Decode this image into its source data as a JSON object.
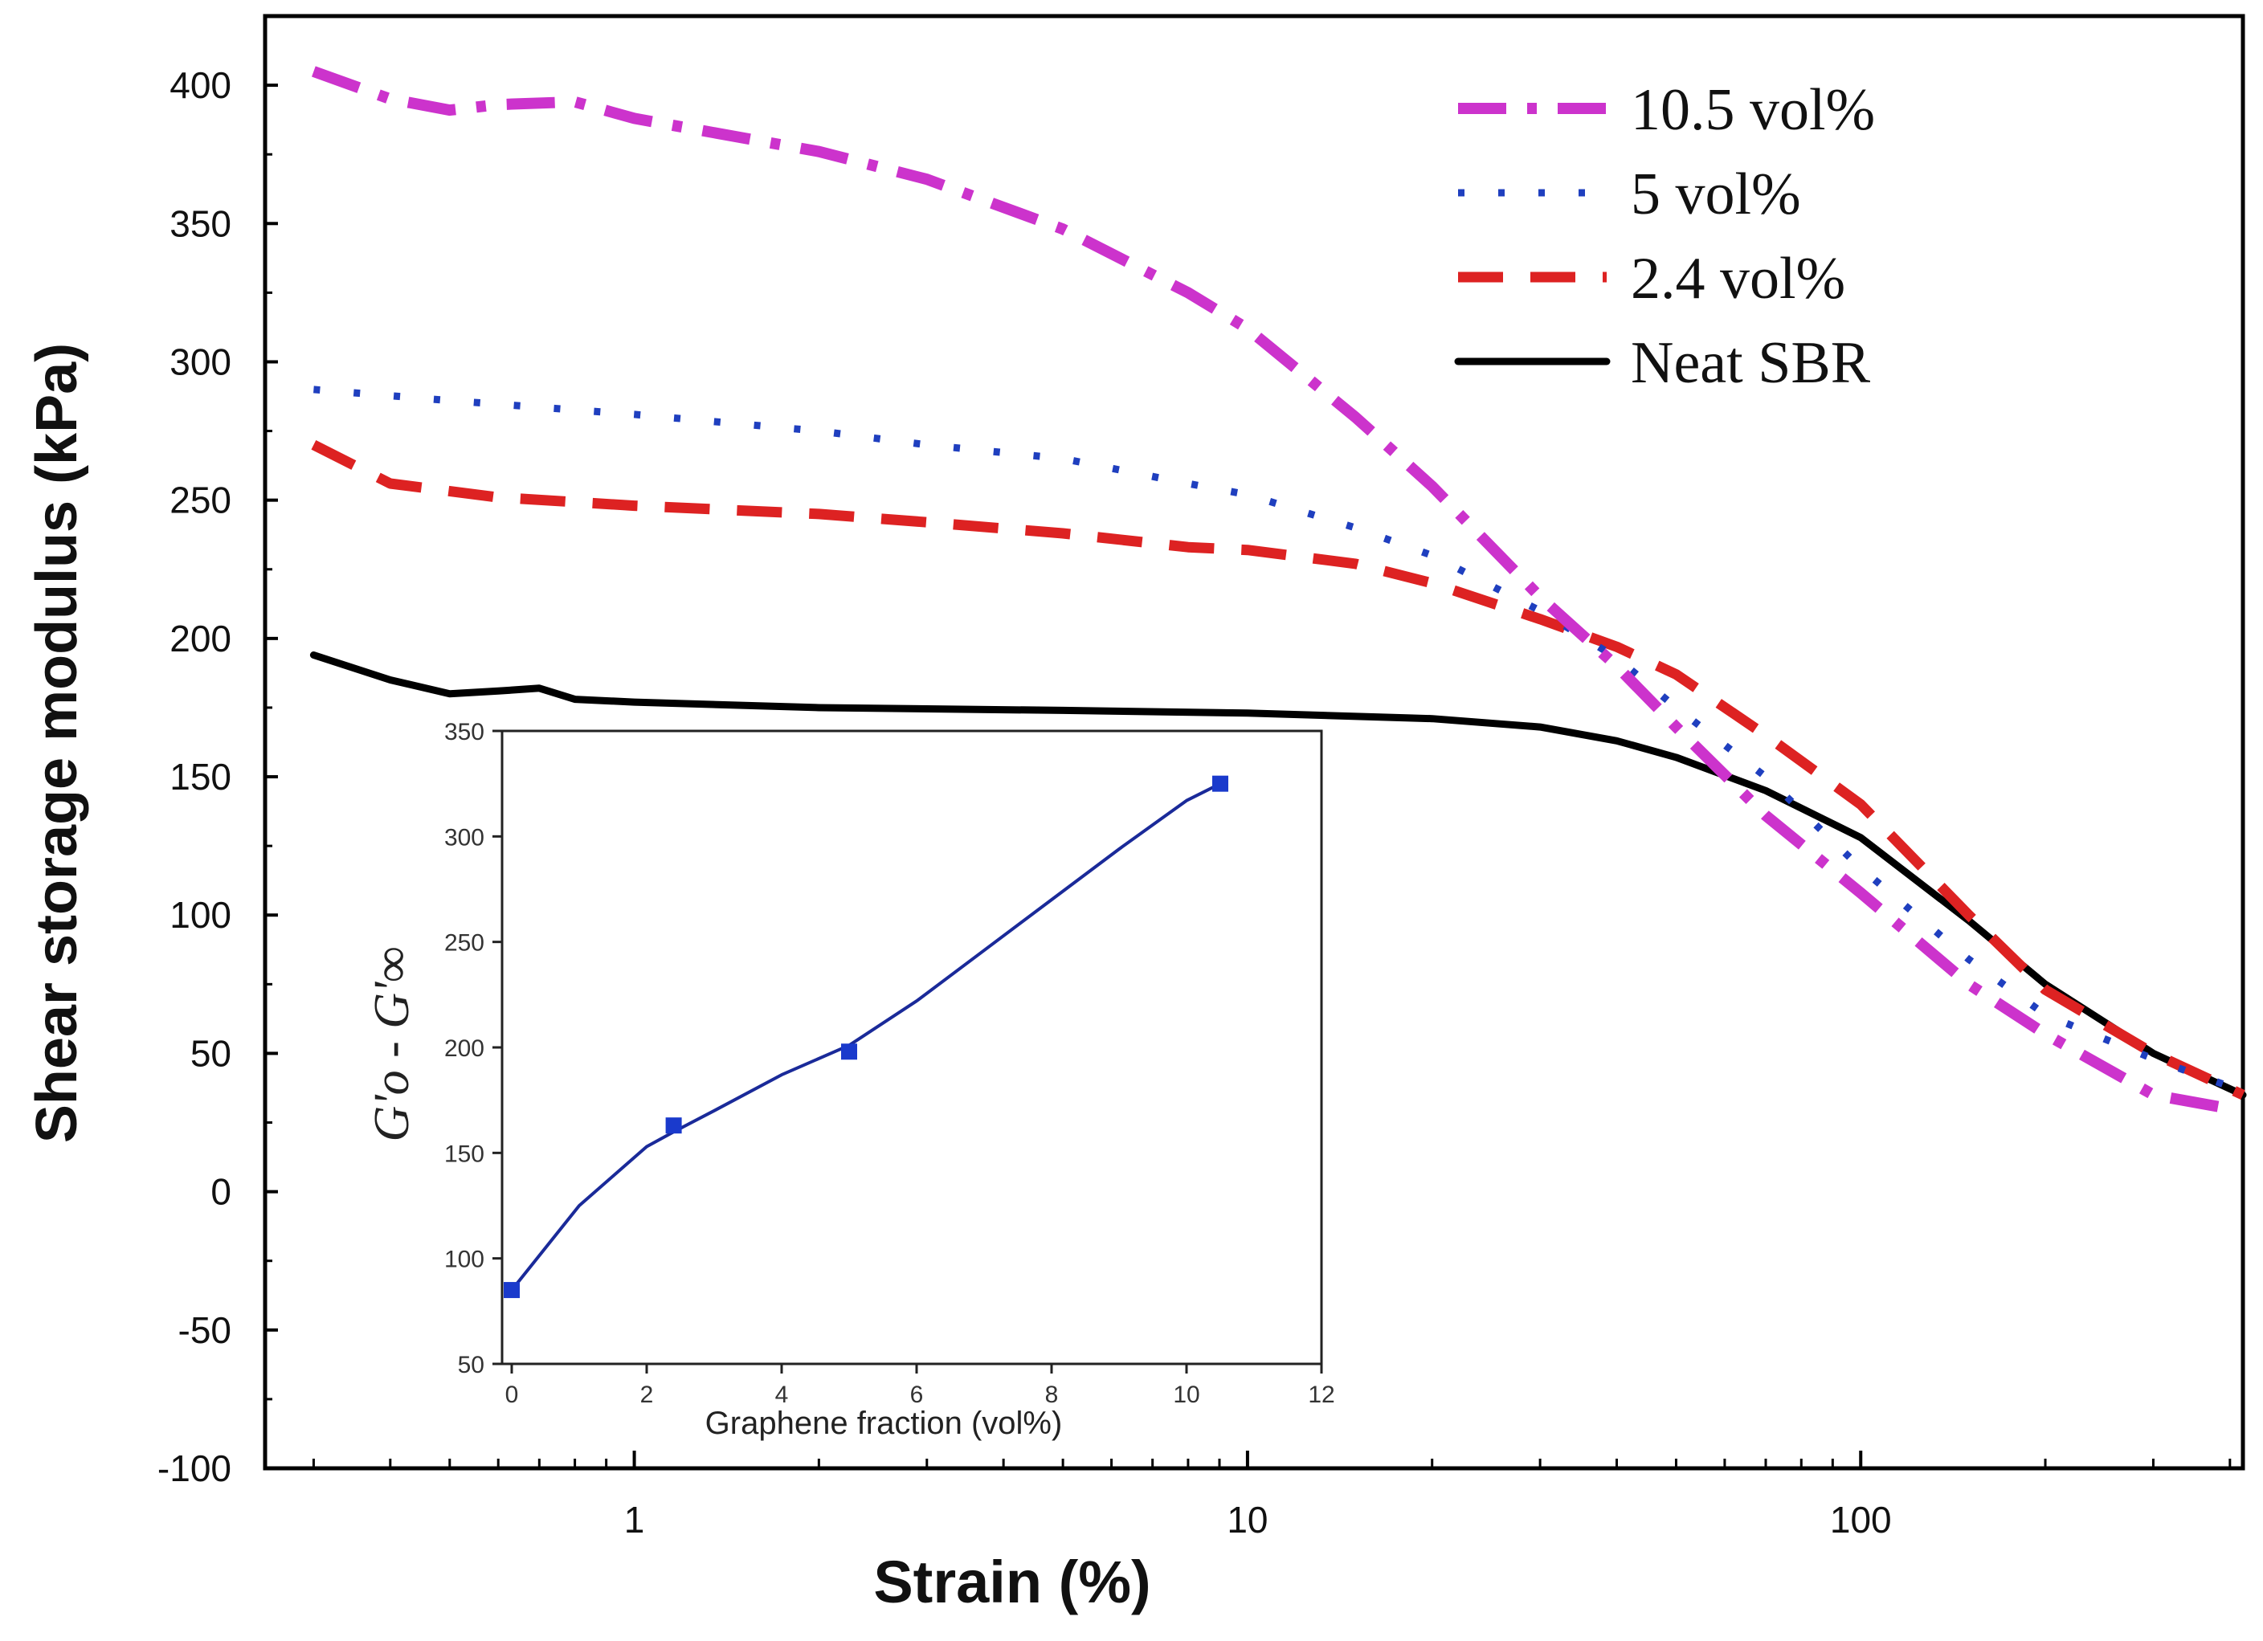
{
  "chart_data": {
    "type": "line",
    "title": "",
    "xlabel": "Strain (%)",
    "ylabel": "Shear storage modulus (kPa)",
    "xscale": "log",
    "xlim": [
      0.25,
      420
    ],
    "ylim": [
      -100,
      425
    ],
    "xticks": [
      1,
      10,
      100
    ],
    "xtick_labels": [
      "1",
      "10",
      "100"
    ],
    "yticks": [
      -100,
      -50,
      0,
      50,
      100,
      150,
      200,
      250,
      300,
      350,
      400
    ],
    "ytick_labels": [
      "-100",
      "-50",
      "0",
      "50",
      "100",
      "150",
      "200",
      "250",
      "300",
      "350",
      "400"
    ],
    "legend_position": "top-right",
    "series": [
      {
        "name": "10.5 vol%",
        "color": "#cc33cc",
        "style": "dash-dot",
        "x": [
          0.3,
          0.4,
          0.5,
          0.6,
          0.8,
          1,
          2,
          3,
          5,
          8,
          10,
          15,
          20,
          30,
          40,
          50,
          70,
          100,
          150,
          200,
          300,
          400
        ],
        "y": [
          405,
          395,
          391,
          393,
          394,
          388,
          376,
          366,
          348,
          325,
          312,
          280,
          255,
          215,
          190,
          168,
          136,
          108,
          75,
          57,
          35,
          30
        ]
      },
      {
        "name": "5 vol%",
        "color": "#1f3fbf",
        "style": "dotted",
        "x": [
          0.3,
          0.5,
          1,
          2,
          3,
          5,
          8,
          10,
          15,
          20,
          30,
          40,
          50,
          70,
          100,
          150,
          200,
          300,
          400
        ],
        "y": [
          290,
          286,
          281,
          275,
          270,
          265,
          256,
          252,
          240,
          230,
          210,
          193,
          175,
          150,
          117,
          84,
          64,
          48,
          38
        ]
      },
      {
        "name": "2.4 vol%",
        "color": "#dd2222",
        "style": "dashed",
        "x": [
          0.3,
          0.4,
          0.6,
          1,
          2,
          3,
          5,
          8,
          10,
          15,
          20,
          30,
          40,
          50,
          70,
          100,
          150,
          200,
          300,
          420
        ],
        "y": [
          270,
          256,
          251,
          248,
          245,
          242,
          238,
          233,
          232,
          227,
          220,
          207,
          197,
          187,
          165,
          140,
          100,
          73,
          50,
          35
        ]
      },
      {
        "name": "Neat SBR",
        "color": "#000000",
        "style": "solid",
        "x": [
          0.3,
          0.4,
          0.5,
          0.6,
          0.7,
          0.8,
          1,
          2,
          5,
          10,
          20,
          30,
          40,
          50,
          70,
          100,
          150,
          200,
          300,
          420
        ],
        "y": [
          194,
          185,
          180,
          181,
          182,
          178,
          177,
          175,
          174,
          173,
          171,
          168,
          163,
          157,
          145,
          128,
          98,
          75,
          50,
          35
        ]
      }
    ],
    "inset": {
      "type": "scatter+line",
      "xlabel": "Graphene fraction (vol%)",
      "ylabel": "G'o - G'∞",
      "xlim": [
        0,
        12
      ],
      "ylim": [
        50,
        350
      ],
      "xticks": [
        0,
        2,
        4,
        6,
        8,
        10,
        12
      ],
      "xtick_labels": [
        "0",
        "2",
        "4",
        "6",
        "8",
        "10",
        "12"
      ],
      "yticks": [
        50,
        100,
        150,
        200,
        250,
        300,
        350
      ],
      "ytick_labels": [
        "50",
        "100",
        "150",
        "200",
        "250",
        "300",
        "350"
      ],
      "color": "#1a2a99",
      "points": {
        "x": [
          0,
          2.4,
          5,
          10.5
        ],
        "y": [
          85,
          163,
          198,
          325
        ]
      },
      "fit": {
        "x": [
          0,
          1,
          2,
          2.4,
          3,
          4,
          5,
          6,
          7,
          8,
          9,
          10,
          10.5
        ],
        "y": [
          85,
          125,
          153,
          160,
          170,
          187,
          201,
          222,
          246,
          270,
          294,
          317,
          325
        ]
      }
    }
  }
}
